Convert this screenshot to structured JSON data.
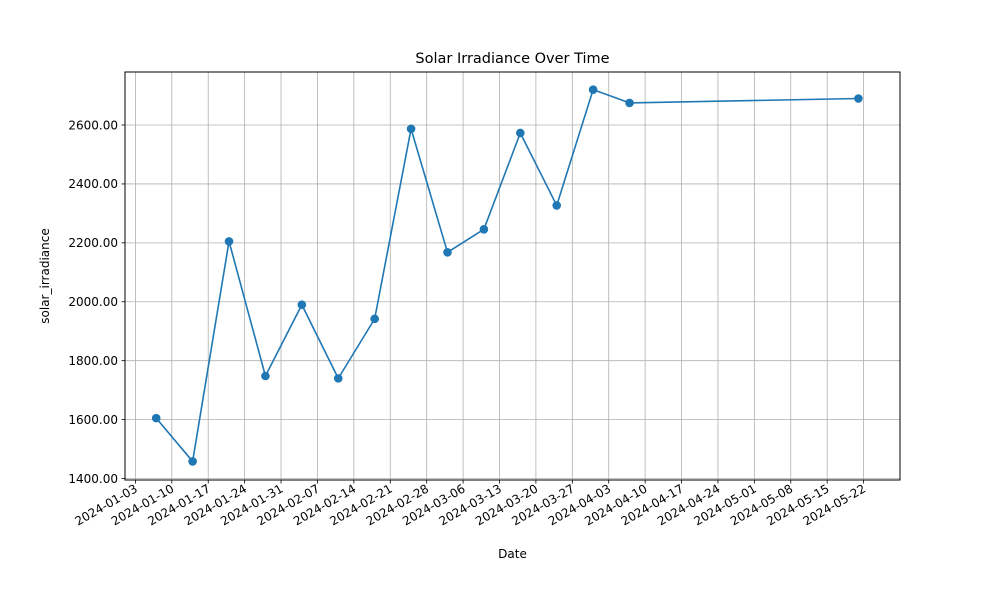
{
  "chart_data": {
    "type": "line",
    "title": "Solar Irradiance Over Time",
    "xlabel": "Date",
    "ylabel": "solar_irradiance",
    "x_ticks": [
      "2024-01-03",
      "2024-01-10",
      "2024-01-17",
      "2024-01-24",
      "2024-01-31",
      "2024-02-07",
      "2024-02-14",
      "2024-02-21",
      "2024-02-28",
      "2024-03-06",
      "2024-03-13",
      "2024-03-20",
      "2024-03-27",
      "2024-04-03",
      "2024-04-10",
      "2024-04-17",
      "2024-04-24",
      "2024-05-01",
      "2024-05-08",
      "2024-05-15",
      "2024-05-22"
    ],
    "y_ticks": [
      "1400.00",
      "1600.00",
      "1800.00",
      "2000.00",
      "2200.00",
      "2400.00",
      "2600.00"
    ],
    "x_range": [
      "2024-01-01",
      "2024-05-29"
    ],
    "ylim": [
      1395,
      2780
    ],
    "grid": true,
    "series_color": "#1f77b4",
    "x": [
      "2024-01-07",
      "2024-01-14",
      "2024-01-21",
      "2024-01-28",
      "2024-02-04",
      "2024-02-11",
      "2024-02-18",
      "2024-02-25",
      "2024-03-03",
      "2024-03-10",
      "2024-03-17",
      "2024-03-24",
      "2024-03-31",
      "2024-04-07",
      "2024-05-21"
    ],
    "values": [
      1605,
      1458,
      2205,
      1748,
      1990,
      1740,
      1942,
      2587,
      2168,
      2246,
      2573,
      2327,
      2720,
      2675,
      2690
    ]
  }
}
